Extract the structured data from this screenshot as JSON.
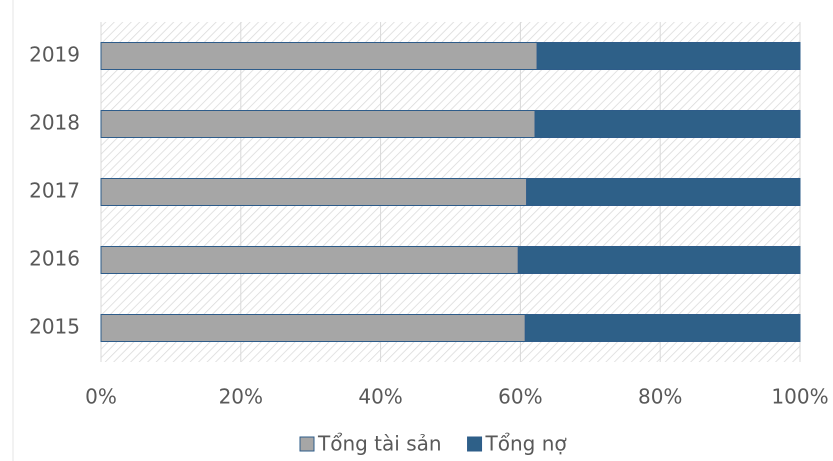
{
  "chart_data": {
    "type": "stacked-bar-horizontal",
    "categories": [
      "2015",
      "2016",
      "2017",
      "2018",
      "2019"
    ],
    "series": [
      {
        "name": "Tổng tài sản",
        "color": "#a6a6a6",
        "values": [
          60.7,
          59.7,
          60.9,
          62.1,
          62.4
        ]
      },
      {
        "name": "Tổng nợ",
        "color": "#2e6088",
        "values": [
          39.3,
          40.3,
          39.1,
          37.9,
          37.6
        ]
      }
    ],
    "xlim": [
      0,
      100
    ],
    "xticks": [
      {
        "value": 0,
        "label": "0%"
      },
      {
        "value": 20,
        "label": "20%"
      },
      {
        "value": 40,
        "label": "40%"
      },
      {
        "value": 60,
        "label": "60%"
      },
      {
        "value": 80,
        "label": "80%"
      },
      {
        "value": 100,
        "label": "100%"
      }
    ],
    "grid": true,
    "legend": "bottom"
  }
}
